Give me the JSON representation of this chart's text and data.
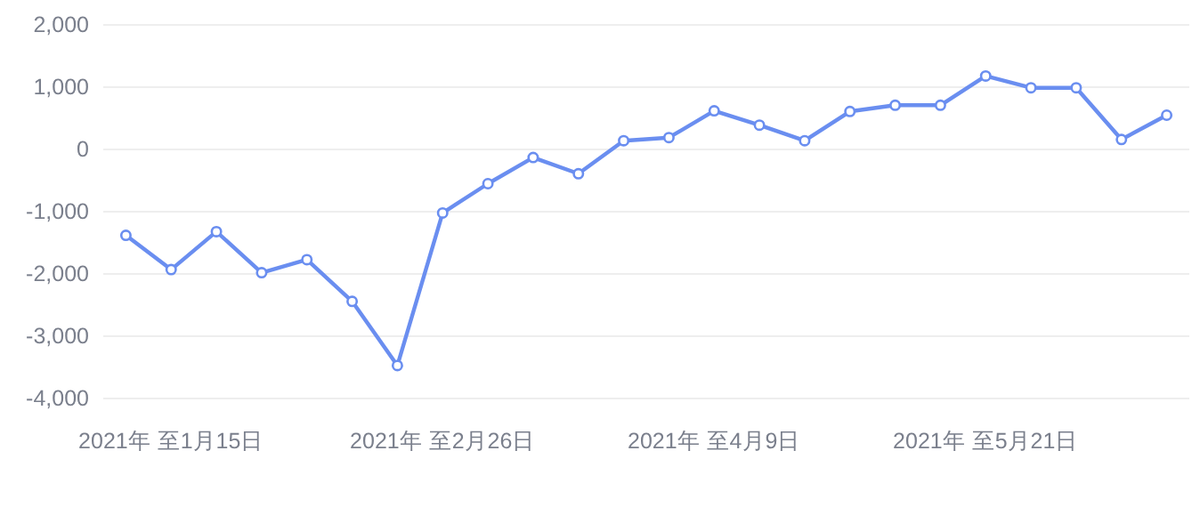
{
  "chart_data": {
    "type": "line",
    "categories": [
      null,
      "2021年 至1月15日",
      null,
      null,
      null,
      null,
      null,
      "2021年 至2月26日",
      null,
      null,
      null,
      null,
      null,
      "2021年 至4月9日",
      null,
      null,
      null,
      null,
      null,
      "2021年 至5月21日",
      null,
      null,
      null,
      null
    ],
    "series": [
      {
        "color": "#6a8ef0",
        "values": [
          -1380,
          -1930,
          -1320,
          -1980,
          -1770,
          -2440,
          -3470,
          -1020,
          -550,
          -130,
          -390,
          140,
          190,
          620,
          390,
          140,
          610,
          710,
          710,
          1180,
          990,
          990,
          160,
          550
        ]
      }
    ],
    "ylim": [
      -4000,
      2000
    ],
    "yticks": [
      {
        "value": -4000,
        "label": "-4,000"
      },
      {
        "value": -3000,
        "label": "-3,000"
      },
      {
        "value": -2000,
        "label": "-2,000"
      },
      {
        "value": -1000,
        "label": "-1,000"
      },
      0,
      {
        "value": 1000,
        "label": "1,000"
      },
      {
        "value": 2000,
        "label": "2,000"
      }
    ],
    "grid": "y",
    "marker": "circle"
  }
}
